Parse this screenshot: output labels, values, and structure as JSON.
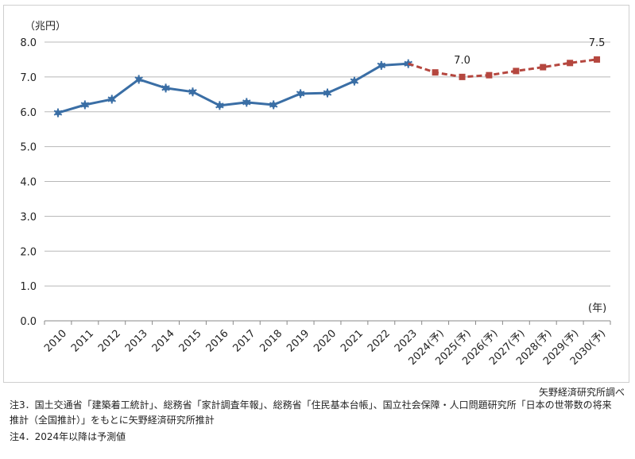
{
  "chart_data": {
    "type": "line",
    "y_unit_label": "（兆円）",
    "x_unit_label": "(年)",
    "categories": [
      "2010",
      "2011",
      "2012",
      "2013",
      "2014",
      "2015",
      "2016",
      "2017",
      "2018",
      "2019",
      "2020",
      "2021",
      "2022",
      "2023",
      "2024(予)",
      "2025(予)",
      "2026(予)",
      "2027(予)",
      "2028(予)",
      "2029(予)",
      "2030(予)"
    ],
    "ylim": [
      0,
      8
    ],
    "yticks": [
      "0.0",
      "1.0",
      "2.0",
      "3.0",
      "4.0",
      "5.0",
      "6.0",
      "7.0",
      "8.0"
    ],
    "grid": true,
    "series": [
      {
        "style": "actual",
        "color": "#3a6ea5",
        "marker": "star",
        "values": [
          5.97,
          6.2,
          6.36,
          6.93,
          6.68,
          6.57,
          6.18,
          6.27,
          6.2,
          6.52,
          6.54,
          6.88,
          7.33,
          7.38,
          null,
          null,
          null,
          null,
          null,
          null,
          null
        ]
      },
      {
        "style": "forecast",
        "color": "#b5473f",
        "marker": "square",
        "dashed": true,
        "values": [
          null,
          null,
          null,
          null,
          null,
          null,
          null,
          null,
          null,
          null,
          null,
          null,
          null,
          7.38,
          7.13,
          7.0,
          7.05,
          7.17,
          7.28,
          7.4,
          7.5
        ]
      }
    ],
    "annotations": [
      {
        "text": "7.0",
        "category": "2025(予)"
      },
      {
        "text": "7.5",
        "category": "2030(予)"
      }
    ]
  },
  "source": "矢野経済研究所調べ",
  "notes": {
    "note3_line1": "注3．国土交通省「建築着工統計」、総務省「家計調査年報」、総務省「住民基本台帳」、国立社会保障・人口問題研究所「日本の世帯数の将来",
    "note3_line2": "推計（全国推計）」をもとに矢野経済研究所推計",
    "note4": "注4．2024年以降は予測値"
  }
}
